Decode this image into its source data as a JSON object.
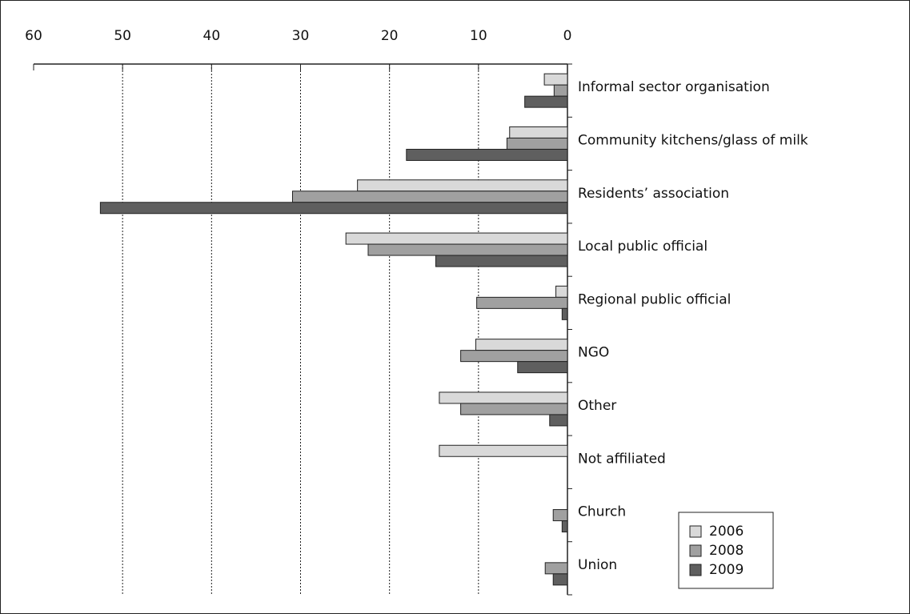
{
  "chart_data": {
    "type": "barh",
    "categories": [
      "Informal sector organisation",
      "Community kitchens/glass of milk",
      "Residents’ association",
      "Local public official",
      "Regional public official",
      "NGO",
      "Other",
      "Not affiliated",
      "Church",
      "Union"
    ],
    "series": [
      {
        "name": "2006",
        "color": "#d9d9d9",
        "values": [
          2.6,
          6.5,
          23.6,
          24.9,
          1.3,
          10.3,
          14.4,
          14.4,
          null,
          null
        ]
      },
      {
        "name": "2008",
        "color": "#a0a0a0",
        "values": [
          1.5,
          6.8,
          30.9,
          22.4,
          10.2,
          12.0,
          12.0,
          null,
          1.6,
          2.5
        ]
      },
      {
        "name": "2009",
        "color": "#5f5f5f",
        "values": [
          4.8,
          18.1,
          52.5,
          14.8,
          0.6,
          5.6,
          2.0,
          null,
          0.6,
          1.6
        ]
      }
    ],
    "xlim": [
      60,
      0
    ],
    "xticks": [
      60,
      50,
      40,
      30,
      20,
      10,
      0
    ],
    "grid": true,
    "legend": "lower right"
  }
}
